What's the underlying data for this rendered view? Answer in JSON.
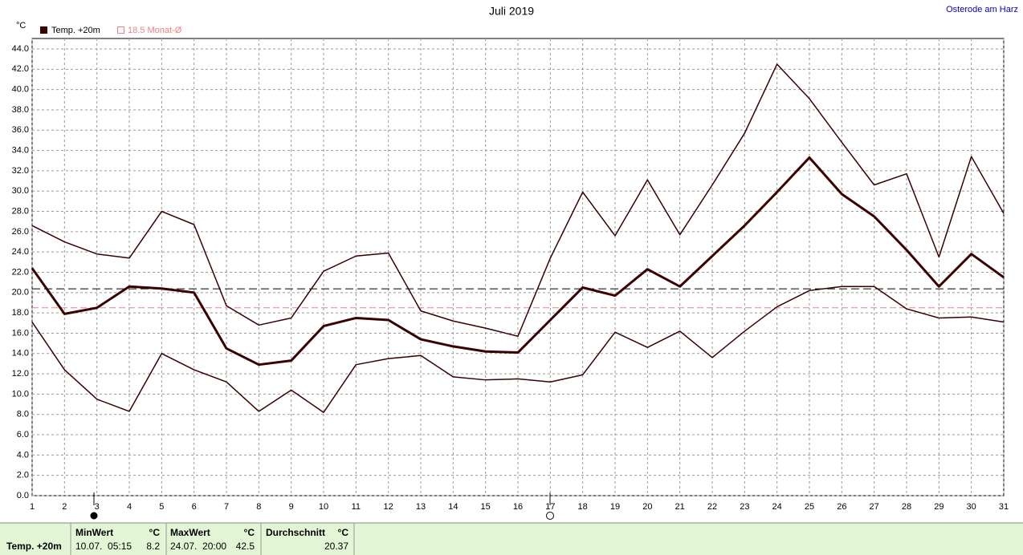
{
  "chart_data": {
    "type": "line",
    "title": "Juli 2019",
    "location": "Osterode am Harz",
    "y_unit": "°C",
    "x": [
      1,
      2,
      3,
      4,
      5,
      6,
      7,
      8,
      9,
      10,
      11,
      12,
      13,
      14,
      15,
      16,
      17,
      18,
      19,
      20,
      21,
      22,
      23,
      24,
      25,
      26,
      27,
      28,
      29,
      30,
      31
    ],
    "xlim": [
      1,
      31
    ],
    "ylim": [
      0,
      44
    ],
    "yticks": [
      {
        "value": 0,
        "label": "0.0"
      },
      {
        "value": 2,
        "label": "2.0"
      },
      {
        "value": 4,
        "label": "4.0"
      },
      {
        "value": 6,
        "label": "6.0"
      },
      {
        "value": 8,
        "label": "8.0"
      },
      {
        "value": 10,
        "label": "10.0"
      },
      {
        "value": 12,
        "label": "12.0"
      },
      {
        "value": 14,
        "label": "14.0"
      },
      {
        "value": 16,
        "label": "16.0"
      },
      {
        "value": 18,
        "label": "18.0"
      },
      {
        "value": 20,
        "label": "20.0"
      },
      {
        "value": 22,
        "label": "22.0"
      },
      {
        "value": 24,
        "label": "24.0"
      },
      {
        "value": 26,
        "label": "26.0"
      },
      {
        "value": 28,
        "label": "28.0"
      },
      {
        "value": 30,
        "label": "30.0"
      },
      {
        "value": 32,
        "label": "32.0"
      },
      {
        "value": 34,
        "label": "34.0"
      },
      {
        "value": 36,
        "label": "36.0"
      },
      {
        "value": 38,
        "label": "38.0"
      },
      {
        "value": 40,
        "label": "40.0"
      },
      {
        "value": 42,
        "label": "42.0"
      },
      {
        "value": 44,
        "label": "44.0"
      }
    ],
    "grid": true,
    "series": [
      {
        "color": "#3a0000",
        "width": 1.5,
        "values": [
          26.6,
          25.0,
          23.8,
          23.4,
          28.0,
          26.7,
          18.7,
          16.8,
          17.5,
          22.1,
          23.6,
          23.9,
          18.2,
          17.2,
          16.5,
          15.7,
          23.4,
          29.9,
          25.6,
          31.1,
          25.7,
          30.6,
          35.7,
          42.5,
          39.1,
          34.8,
          30.6,
          31.7,
          23.5,
          33.4,
          27.8
        ]
      },
      {
        "name": "Temp. +20m",
        "color": "#3a0000",
        "width": 3,
        "values": [
          22.4,
          17.9,
          18.5,
          20.6,
          20.4,
          20.0,
          14.5,
          12.9,
          13.3,
          16.7,
          17.5,
          17.3,
          15.4,
          14.7,
          14.2,
          14.1,
          17.3,
          20.5,
          19.7,
          22.3,
          20.6,
          23.6,
          26.6,
          29.9,
          33.3,
          29.7,
          27.5,
          24.2,
          20.6,
          23.8,
          21.5
        ]
      },
      {
        "color": "#3a0000",
        "width": 1.5,
        "values": [
          17.1,
          12.4,
          9.5,
          8.3,
          14.0,
          12.4,
          11.2,
          8.3,
          10.4,
          8.2,
          12.9,
          13.5,
          13.8,
          11.7,
          11.4,
          11.5,
          11.2,
          11.9,
          16.1,
          14.6,
          16.2,
          13.6,
          16.2,
          18.6,
          20.2,
          20.6,
          20.6,
          18.4,
          17.5,
          17.6,
          17.1
        ]
      }
    ],
    "monthly_mean": {
      "value": 18.5,
      "label": "Monat-Ø",
      "color": "#f08080"
    },
    "footer": {
      "min": {
        "header": "MinWert",
        "unit": "°C",
        "time": "10.07.  05:15",
        "value": 8.2
      },
      "max": {
        "header": "MaxWert",
        "unit": "°C",
        "time": "24.07.  20:00",
        "value": 42.5
      },
      "average": {
        "header": "Durchschnitt",
        "unit": "°C",
        "value": 20.37
      }
    }
  }
}
